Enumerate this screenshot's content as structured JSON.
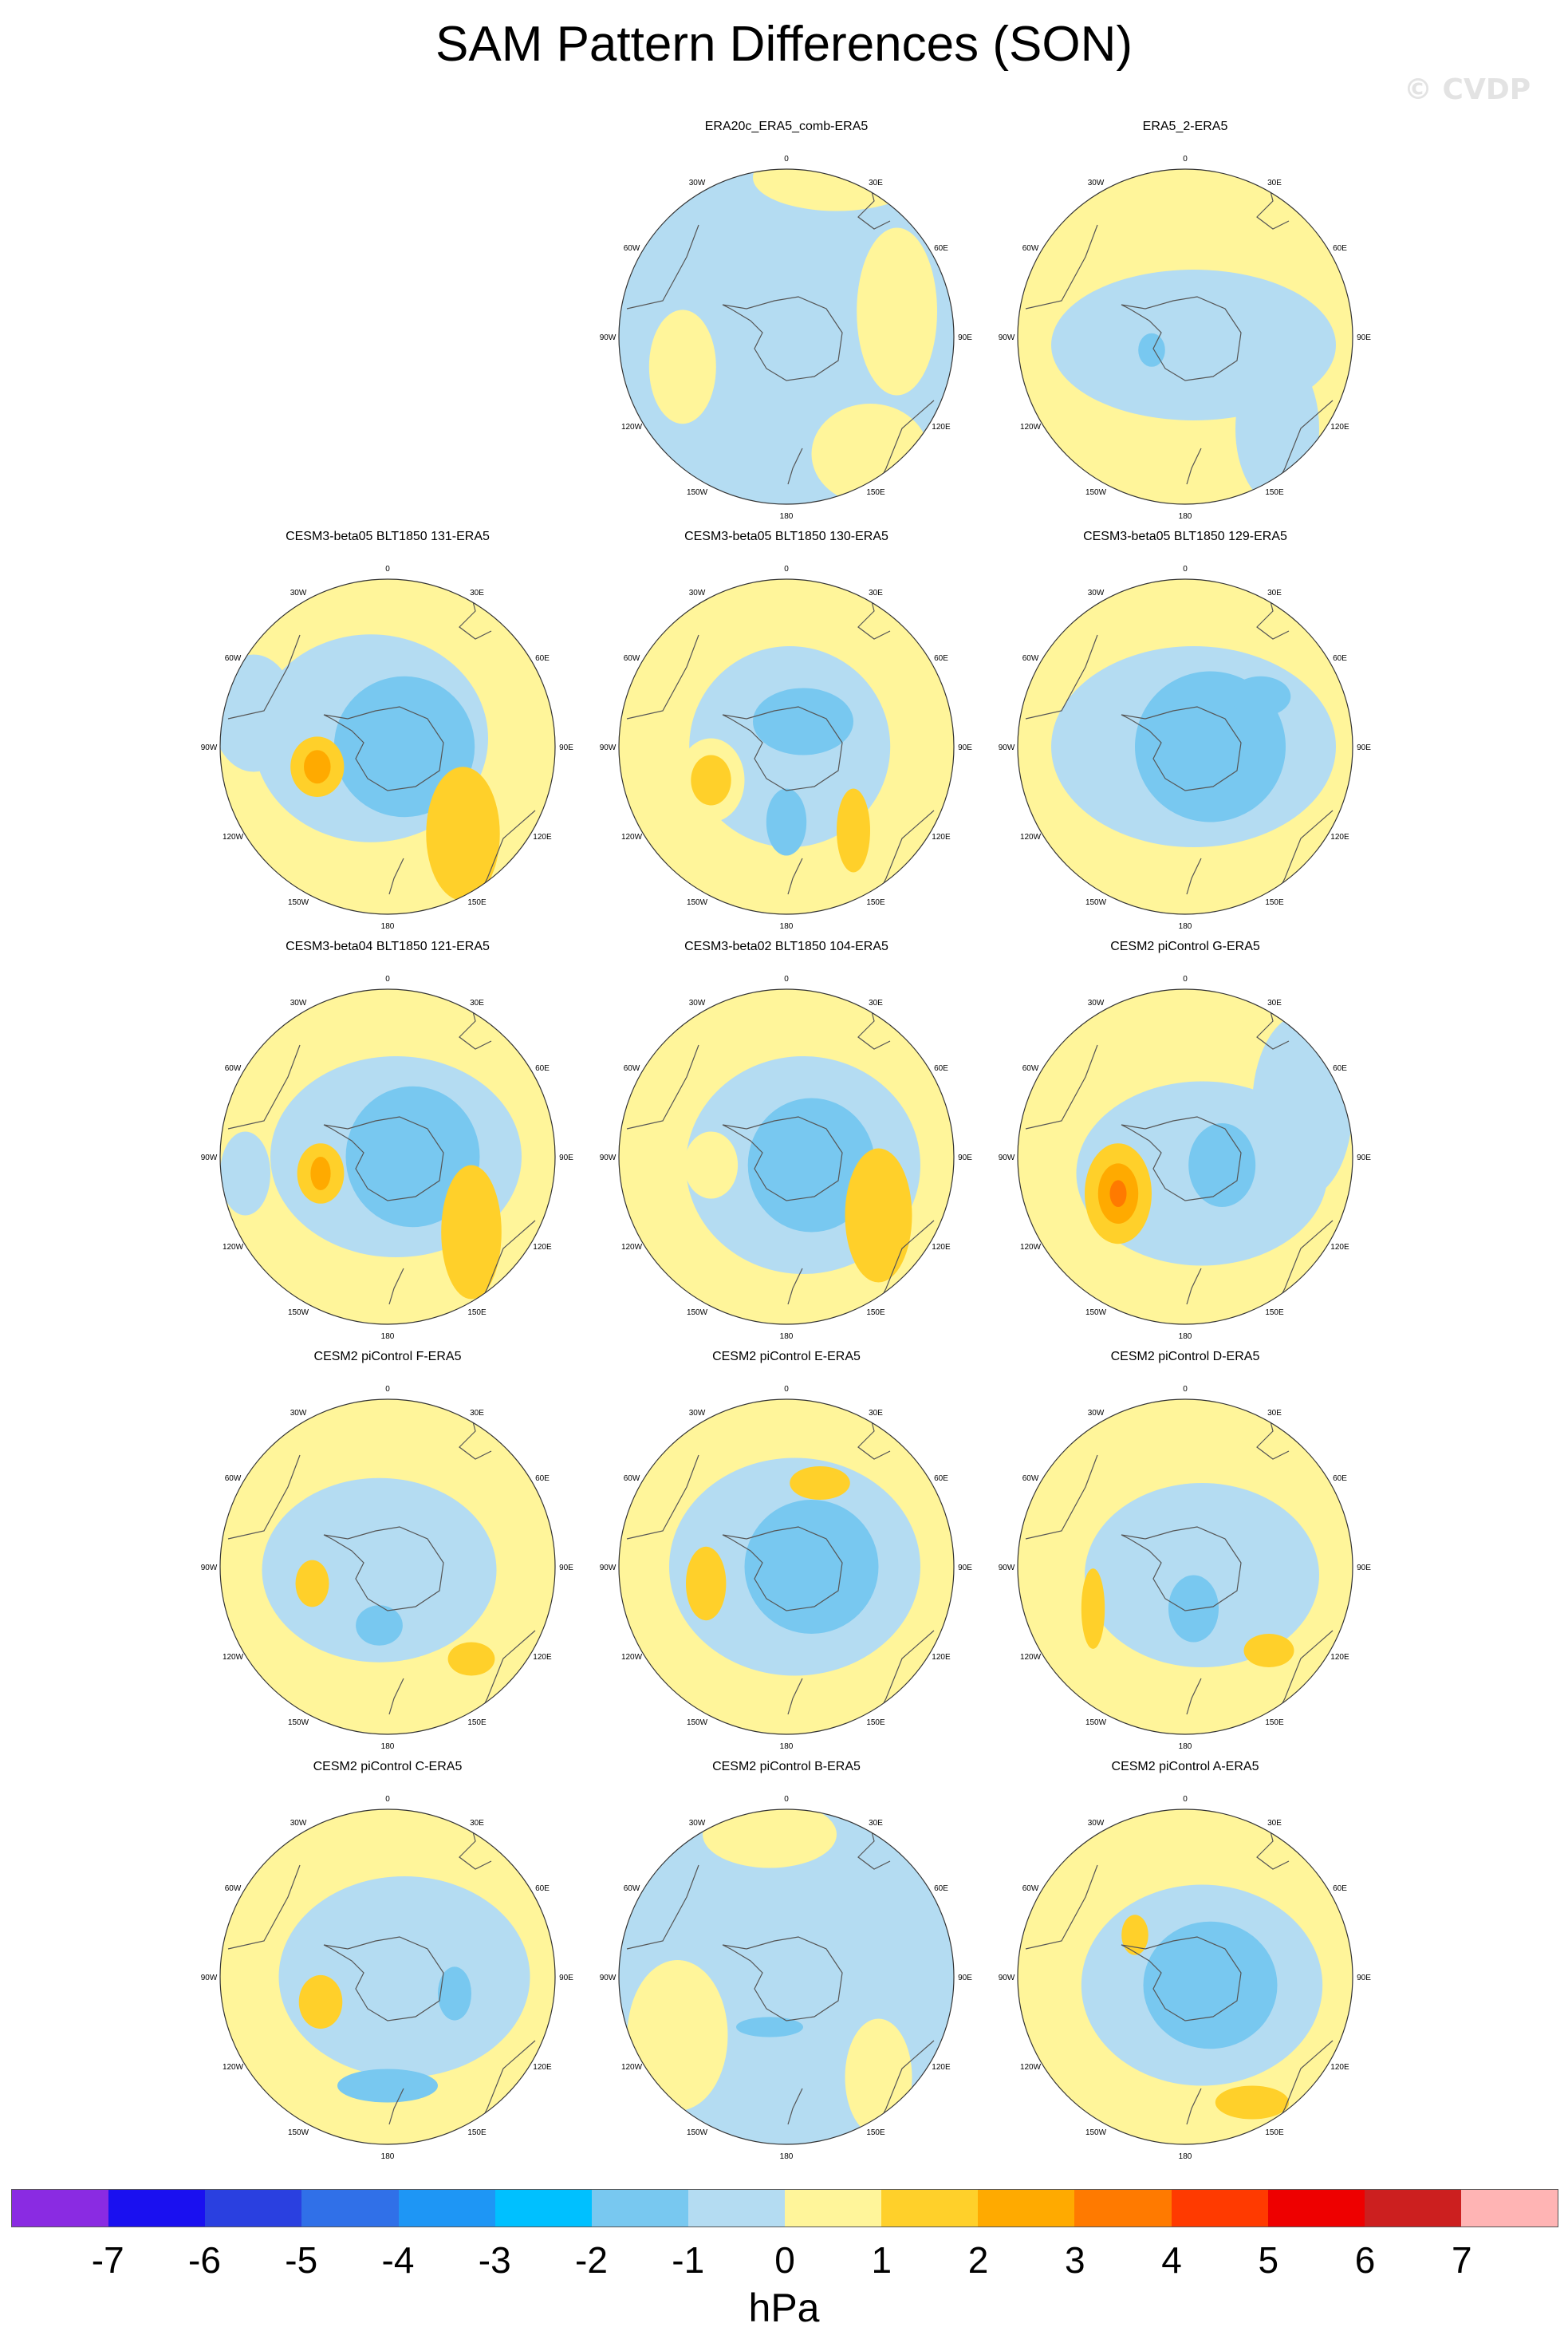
{
  "title": "SAM Pattern Differences (SON)",
  "watermark": "© CVDP",
  "lon_labels": {
    "l0": "0",
    "l30e": "30E",
    "l60e": "60E",
    "l90e": "90E",
    "l120e": "120E",
    "l150e": "150E",
    "l180": "180",
    "l150w": "150W",
    "l120w": "120W",
    "l90w": "90W",
    "l60w": "60W",
    "l30w": "30W"
  },
  "panels": [
    {
      "title": "ERA20c_ERA5_comb-ERA5",
      "row": 0,
      "col": 1
    },
    {
      "title": "ERA5_2-ERA5",
      "row": 0,
      "col": 2
    },
    {
      "title": "CESM3-beta05 BLT1850 131-ERA5",
      "row": 1,
      "col": 0
    },
    {
      "title": "CESM3-beta05 BLT1850 130-ERA5",
      "row": 1,
      "col": 1
    },
    {
      "title": "CESM3-beta05 BLT1850 129-ERA5",
      "row": 1,
      "col": 2
    },
    {
      "title": "CESM3-beta04 BLT1850 121-ERA5",
      "row": 2,
      "col": 0
    },
    {
      "title": "CESM3-beta02 BLT1850 104-ERA5",
      "row": 2,
      "col": 1
    },
    {
      "title": "CESM2 piControl G-ERA5",
      "row": 2,
      "col": 2
    },
    {
      "title": "CESM2 piControl F-ERA5",
      "row": 3,
      "col": 0
    },
    {
      "title": "CESM2 piControl E-ERA5",
      "row": 3,
      "col": 1
    },
    {
      "title": "CESM2 piControl D-ERA5",
      "row": 3,
      "col": 2
    },
    {
      "title": "CESM2 piControl C-ERA5",
      "row": 4,
      "col": 0
    },
    {
      "title": "CESM2 piControl B-ERA5",
      "row": 4,
      "col": 1
    },
    {
      "title": "CESM2 piControl A-ERA5",
      "row": 4,
      "col": 2
    }
  ],
  "colorbar": {
    "colors": [
      "#8a2be2",
      "#1a10f0",
      "#2a40e0",
      "#3070e8",
      "#1e96f5",
      "#00c0ff",
      "#78c8f0",
      "#b4dcf2",
      "#fff59a",
      "#ffd02a",
      "#ffaa00",
      "#ff7a00",
      "#ff3a00",
      "#ee0000",
      "#cc1f1f",
      "#ffb4b4"
    ],
    "labels": [
      "-7",
      "-6",
      "-5",
      "-4",
      "-3",
      "-2",
      "-1",
      "0",
      "1",
      "2",
      "3",
      "4",
      "5",
      "6",
      "7"
    ],
    "unit": "hPa"
  },
  "palette": {
    "neg2": "#78c8f0",
    "neg1": "#b4dcf2",
    "pos1": "#fff59a",
    "pos2": "#ffd02a",
    "pos3": "#ffaa00",
    "pos4": "#ff7a00"
  }
}
